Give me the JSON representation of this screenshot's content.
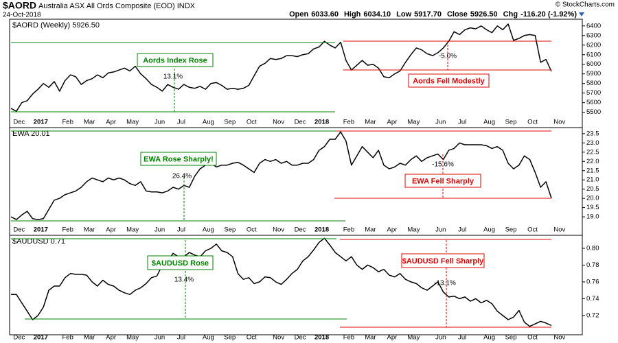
{
  "header": {
    "symbol": "$AORD",
    "description": "Australia ASX All Ords Composite (EOD) INDX",
    "date": "24-Oct-2018",
    "copyright": "© StockCharts.com",
    "quote": [
      {
        "label": "Open",
        "value": "6033.60"
      },
      {
        "label": "High",
        "value": "6034.10"
      },
      {
        "label": "Low",
        "value": "5917.70"
      },
      {
        "label": "Close",
        "value": "5926.50"
      },
      {
        "label": "Chg",
        "value": "-116.20 (-1.92%)"
      }
    ]
  },
  "chart_data": [
    {
      "type": "line",
      "title": "$AORD (Weekly) 5926.50",
      "color": "#000000",
      "categories": [
        null,
        "Dec",
        null,
        null,
        null,
        "2017",
        null,
        null,
        null,
        null,
        "Feb",
        null,
        null,
        null,
        "Mar",
        null,
        null,
        null,
        "Apr",
        null,
        null,
        null,
        "May",
        null,
        null,
        null,
        null,
        "Jun",
        null,
        null,
        null,
        "Jul",
        null,
        null,
        null,
        null,
        "Aug",
        null,
        null,
        null,
        "Sep",
        null,
        null,
        null,
        "Oct",
        null,
        null,
        null,
        null,
        "Nov",
        null,
        null,
        null,
        "Dec",
        null,
        null,
        null,
        "2018",
        null,
        null,
        null,
        null,
        "Feb",
        null,
        null,
        null,
        "Mar",
        null,
        null,
        null,
        "Apr",
        null,
        null,
        null,
        "May",
        null,
        null,
        null,
        null,
        "Jun",
        null,
        null,
        null,
        "Jul",
        null,
        null,
        null,
        null,
        "Aug",
        null,
        null,
        null,
        "Sep",
        null,
        null,
        null,
        "Oct",
        null,
        null,
        null,
        null,
        "Nov"
      ],
      "values": [
        5540,
        5510,
        5600,
        5620,
        5690,
        5740,
        5800,
        5760,
        5820,
        5720,
        5830,
        5890,
        5870,
        5790,
        5830,
        5850,
        5890,
        5860,
        5910,
        5920,
        5940,
        5960,
        5930,
        5980,
        5900,
        5850,
        5790,
        5760,
        5720,
        5790,
        5760,
        5740,
        5790,
        5760,
        5750,
        5770,
        5740,
        5800,
        5810,
        5780,
        5740,
        5750,
        5740,
        5750,
        5780,
        5880,
        5980,
        6010,
        6060,
        6050,
        6060,
        6090,
        6090,
        6080,
        6100,
        6110,
        6160,
        6180,
        6240,
        6200,
        6170,
        6230,
        6040,
        5940,
        5990,
        6040,
        5990,
        6000,
        5960,
        5870,
        5860,
        5900,
        5930,
        6020,
        6100,
        6170,
        6150,
        6110,
        6090,
        6120,
        6170,
        6240,
        6340,
        6310,
        6360,
        6380,
        6370,
        6400,
        6360,
        6330,
        6400,
        6360,
        6420,
        6250,
        6270,
        6300,
        6310,
        6300,
        6020,
        6050,
        5926.5,
        null
      ],
      "ylim": [
        5340,
        6470
      ],
      "yticks": [
        5500,
        5600,
        5700,
        5800,
        5900,
        6000,
        6100,
        6200,
        6300,
        6400
      ],
      "annotations": {
        "rise_label": "Aords Index Rose",
        "rise_pct": "13.1%",
        "fall_label": "Aords Fell Modestly",
        "fall_pct": "-5.0%"
      }
    },
    {
      "type": "line",
      "title": "EWA 20.01",
      "color": "#000000",
      "categories": [
        null,
        "Dec",
        null,
        null,
        null,
        "2017",
        null,
        null,
        null,
        null,
        "Feb",
        null,
        null,
        null,
        "Mar",
        null,
        null,
        null,
        "Apr",
        null,
        null,
        null,
        "May",
        null,
        null,
        null,
        null,
        "Jun",
        null,
        null,
        null,
        "Jul",
        null,
        null,
        null,
        null,
        "Aug",
        null,
        null,
        null,
        "Sep",
        null,
        null,
        null,
        "Oct",
        null,
        null,
        null,
        null,
        "Nov",
        null,
        null,
        null,
        "Dec",
        null,
        null,
        null,
        "2018",
        null,
        null,
        null,
        null,
        "Feb",
        null,
        null,
        null,
        "Mar",
        null,
        null,
        null,
        "Apr",
        null,
        null,
        null,
        "May",
        null,
        null,
        null,
        null,
        "Jun",
        null,
        null,
        null,
        "Jul",
        null,
        null,
        null,
        null,
        "Aug",
        null,
        null,
        null,
        "Sep",
        null,
        null,
        null,
        "Oct",
        null,
        null,
        null,
        null,
        "Nov"
      ],
      "values": [
        19.0,
        18.85,
        19.1,
        19.3,
        18.9,
        18.85,
        18.9,
        19.4,
        19.9,
        20.0,
        20.2,
        20.3,
        20.4,
        20.6,
        20.9,
        21.1,
        21.0,
        20.9,
        21.1,
        21.0,
        21.1,
        21.0,
        20.8,
        20.7,
        20.9,
        20.4,
        20.35,
        20.35,
        20.3,
        20.4,
        20.6,
        20.5,
        20.7,
        20.6,
        21.2,
        21.6,
        21.8,
        21.9,
        21.7,
        21.8,
        21.8,
        21.9,
        21.95,
        21.8,
        21.6,
        21.4,
        21.9,
        22.1,
        22.0,
        22.1,
        21.9,
        22.0,
        21.8,
        21.8,
        21.9,
        21.9,
        22.1,
        22.6,
        22.8,
        23.2,
        23.2,
        23.6,
        23.1,
        21.8,
        22.3,
        22.8,
        22.5,
        22.2,
        22.6,
        21.8,
        21.6,
        21.7,
        21.9,
        21.8,
        22.1,
        22.3,
        22.0,
        22.2,
        22.3,
        22.4,
        22.1,
        22.6,
        22.7,
        23.0,
        22.9,
        22.9,
        22.9,
        22.9,
        22.85,
        22.7,
        22.8,
        22.6,
        21.9,
        21.6,
        21.8,
        22.3,
        22.1,
        21.4,
        20.6,
        20.9,
        20.01,
        null
      ],
      "ylim": [
        18.0,
        23.83
      ],
      "yticks": [
        {
          "value": 19,
          "label": "19.0"
        },
        19.5,
        {
          "value": 20,
          "label": "20.0"
        },
        20.5,
        {
          "value": 21,
          "label": "21.0"
        },
        21.5,
        {
          "value": 22,
          "label": "22.0"
        },
        22.5,
        {
          "value": 23,
          "label": "23.0"
        },
        23.5
      ],
      "annotations": {
        "rise_label": "EWA Rose Sharply!",
        "rise_pct": "26.4%",
        "fall_label": "EWA Fell Sharply",
        "fall_pct": "-15.6%"
      }
    },
    {
      "type": "line",
      "title": "$AUDUSD 0.71",
      "color": "#000000",
      "categories": [
        null,
        "Dec",
        null,
        null,
        null,
        "2017",
        null,
        null,
        null,
        null,
        "Feb",
        null,
        null,
        null,
        "Mar",
        null,
        null,
        null,
        "Apr",
        null,
        null,
        null,
        "May",
        null,
        null,
        null,
        null,
        "Jun",
        null,
        null,
        null,
        "Jul",
        null,
        null,
        null,
        null,
        "Aug",
        null,
        null,
        null,
        "Sep",
        null,
        null,
        null,
        "Oct",
        null,
        null,
        null,
        null,
        "Nov",
        null,
        null,
        null,
        "Dec",
        null,
        null,
        null,
        "2018",
        null,
        null,
        null,
        null,
        "Feb",
        null,
        null,
        null,
        "Mar",
        null,
        null,
        null,
        "Apr",
        null,
        null,
        null,
        "May",
        null,
        null,
        null,
        null,
        "Jun",
        null,
        null,
        null,
        "Jul",
        null,
        null,
        null,
        null,
        "Aug",
        null,
        null,
        null,
        "Sep",
        null,
        null,
        null,
        "Oct",
        null,
        null,
        null,
        null,
        "Nov"
      ],
      "values": [
        0.745,
        0.745,
        0.735,
        0.725,
        0.715,
        0.72,
        0.73,
        0.75,
        0.755,
        0.755,
        0.765,
        0.77,
        0.769,
        0.769,
        0.768,
        0.76,
        0.755,
        0.762,
        0.757,
        0.755,
        0.75,
        0.747,
        0.745,
        0.75,
        0.753,
        0.758,
        0.765,
        0.767,
        0.78,
        0.785,
        0.794,
        0.79,
        0.79,
        0.795,
        0.792,
        0.79,
        0.797,
        0.8,
        0.805,
        0.797,
        0.795,
        0.79,
        0.77,
        0.763,
        0.765,
        0.758,
        0.76,
        0.766,
        0.765,
        0.76,
        0.757,
        0.763,
        0.77,
        0.775,
        0.785,
        0.79,
        0.798,
        0.807,
        0.812,
        0.804,
        0.795,
        0.79,
        0.785,
        0.79,
        0.78,
        0.775,
        0.78,
        0.777,
        0.772,
        0.775,
        0.768,
        0.766,
        0.77,
        0.763,
        0.76,
        0.758,
        0.753,
        0.75,
        0.755,
        0.76,
        0.748,
        0.742,
        0.743,
        0.74,
        0.742,
        0.737,
        0.74,
        0.735,
        0.738,
        0.734,
        0.725,
        0.72,
        0.715,
        0.718,
        0.726,
        0.712,
        0.707,
        0.71,
        0.713,
        0.711,
        0.708,
        null
      ],
      "ylim": [
        0.697,
        0.8155
      ],
      "yticks": [
        0.72,
        0.74,
        0.76,
        0.78,
        {
          "value": 0.8,
          "label": "0.80"
        }
      ],
      "annotations": {
        "rise_label": "$AUDUSD Rose",
        "rise_pct": "13.4%",
        "fall_label": "$AUDUSD Fell Sharply",
        "fall_pct": "-13.1%"
      }
    }
  ]
}
